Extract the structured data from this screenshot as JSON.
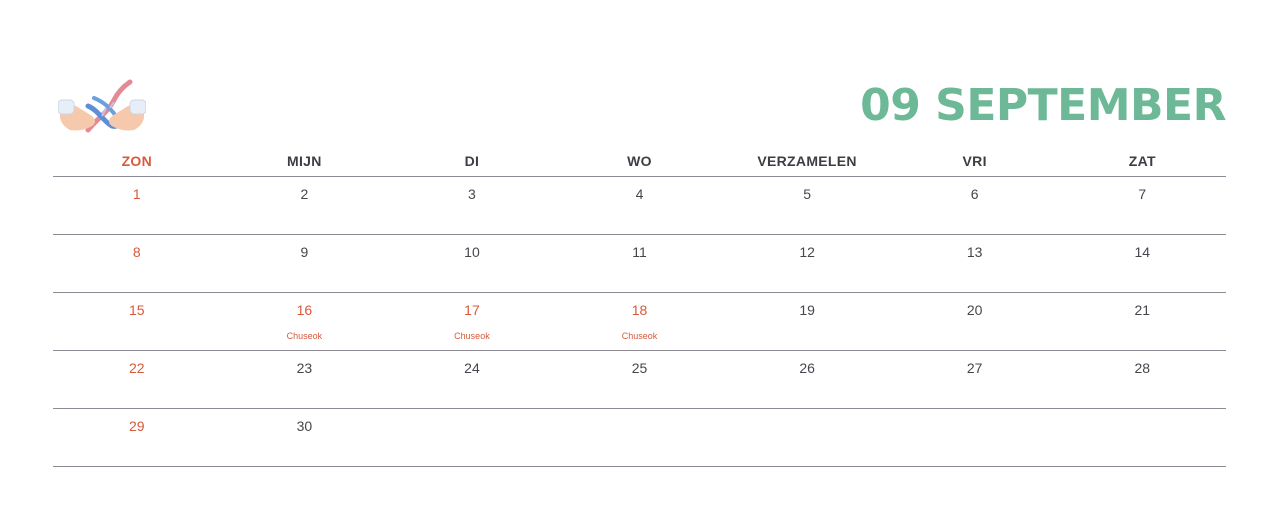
{
  "header": {
    "title": "09 SEPTEMBER",
    "logo_icon": "dna-hands-icon"
  },
  "weekdays": [
    "ZON",
    "MIJN",
    "DI",
    "WO",
    "VERZAMELEN",
    "VRI",
    "ZAT"
  ],
  "weeks": [
    [
      {
        "d": "1",
        "red": true
      },
      {
        "d": "2"
      },
      {
        "d": "3"
      },
      {
        "d": "4"
      },
      {
        "d": "5"
      },
      {
        "d": "6"
      },
      {
        "d": "7"
      }
    ],
    [
      {
        "d": "8",
        "red": true
      },
      {
        "d": "9"
      },
      {
        "d": "10"
      },
      {
        "d": "11"
      },
      {
        "d": "12"
      },
      {
        "d": "13"
      },
      {
        "d": "14"
      }
    ],
    [
      {
        "d": "15",
        "red": true
      },
      {
        "d": "16",
        "red": true,
        "note": "Chuseok"
      },
      {
        "d": "17",
        "red": true,
        "note": "Chuseok"
      },
      {
        "d": "18",
        "red": true,
        "note": "Chuseok"
      },
      {
        "d": "19"
      },
      {
        "d": "20"
      },
      {
        "d": "21"
      }
    ],
    [
      {
        "d": "22",
        "red": true
      },
      {
        "d": "23"
      },
      {
        "d": "24"
      },
      {
        "d": "25"
      },
      {
        "d": "26"
      },
      {
        "d": "27"
      },
      {
        "d": "28"
      }
    ],
    [
      {
        "d": "29",
        "red": true
      },
      {
        "d": "30"
      },
      {
        "d": ""
      },
      {
        "d": ""
      },
      {
        "d": ""
      },
      {
        "d": ""
      },
      {
        "d": ""
      }
    ]
  ],
  "colors": {
    "title": "#6db896",
    "holiday": "#d9593b",
    "text": "#47454c",
    "rule": "#8e8a94"
  }
}
